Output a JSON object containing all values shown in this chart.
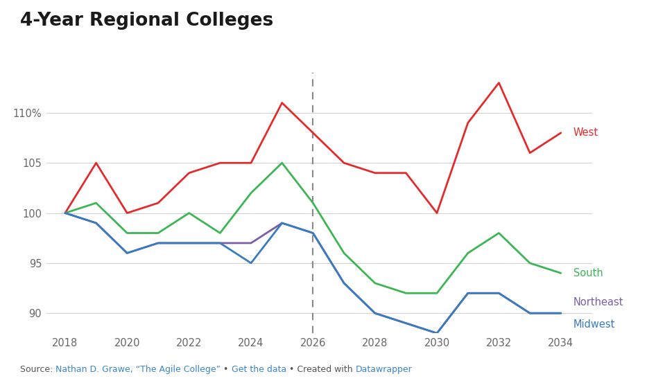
{
  "title": "4-Year Regional Colleges",
  "years": [
    2018,
    2019,
    2020,
    2021,
    2022,
    2023,
    2024,
    2025,
    2026,
    2027,
    2028,
    2029,
    2030,
    2031,
    2032,
    2033,
    2034
  ],
  "west": [
    100,
    105,
    100,
    101,
    104,
    105,
    105,
    111,
    108,
    105,
    104,
    104,
    100,
    109,
    113,
    106,
    108
  ],
  "south": [
    100,
    101,
    98,
    98,
    100,
    98,
    102,
    105,
    101,
    96,
    93,
    92,
    92,
    96,
    98,
    95,
    94
  ],
  "northeast": [
    100,
    99,
    96,
    97,
    97,
    97,
    97,
    99,
    98,
    93,
    90,
    89,
    88,
    92,
    92,
    90,
    90
  ],
  "midwest": [
    100,
    99,
    96,
    97,
    97,
    97,
    95,
    99,
    98,
    93,
    90,
    89,
    88,
    92,
    92,
    90,
    90
  ],
  "colors": {
    "west": "#e32b2b",
    "south": "#3cb554",
    "northeast": "#7b5ea7",
    "midwest": "#3a7abf"
  },
  "vline_x": 2026,
  "ylim": [
    88,
    114
  ],
  "yticks": [
    90,
    95,
    100,
    105,
    110
  ],
  "ytick_labels": [
    "90",
    "95",
    "100",
    "105",
    "110%"
  ],
  "xticks": [
    2018,
    2020,
    2022,
    2024,
    2026,
    2028,
    2030,
    2032,
    2034
  ],
  "source_parts": [
    {
      "text": "Source: ",
      "color": "#555555"
    },
    {
      "text": "Nathan D. Grawe, “The Agile College”",
      "color": "#3a86c8"
    },
    {
      "text": " • ",
      "color": "#555555"
    },
    {
      "text": "Get the data",
      "color": "#3a86c8"
    },
    {
      "text": " • Created with ",
      "color": "#555555"
    },
    {
      "text": "Datawrapper",
      "color": "#3a86c8"
    }
  ],
  "bg_color": "#ffffff",
  "grid_color": "#d0d0d0",
  "label_west": "West",
  "label_south": "South",
  "label_northeast": "Northeast",
  "label_midwest": "Midwest"
}
